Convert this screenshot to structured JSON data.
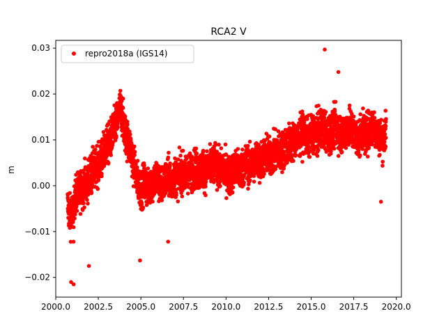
{
  "chart_data": {
    "type": "scatter",
    "title": "RCA2 V",
    "xlabel": "",
    "ylabel": "m",
    "xlim": [
      2000.0,
      2020.3
    ],
    "ylim": [
      -0.0243,
      0.0317
    ],
    "x_ticks": [
      2000.0,
      2002.5,
      2005.0,
      2007.5,
      2010.0,
      2012.5,
      2015.0,
      2017.5,
      2020.0
    ],
    "x_tick_labels": [
      "2000.0",
      "2002.5",
      "2005.0",
      "2007.5",
      "2010.0",
      "2012.5",
      "2015.0",
      "2017.5",
      "2020.0"
    ],
    "y_ticks": [
      -0.02,
      -0.01,
      0.0,
      0.01,
      0.02,
      0.03
    ],
    "y_tick_labels": [
      "−0.02",
      "−0.01",
      "0.00",
      "0.01",
      "0.02",
      "0.03"
    ],
    "grid": false,
    "legend_position": "top-left",
    "series": [
      {
        "name": "repro2018a (IGS14)",
        "color": "#ff0000",
        "marker": "circle",
        "x": [
          2000.7,
          2000.8,
          2000.9,
          2001.0,
          2001.05,
          2001.1,
          2001.2,
          2001.3,
          2001.4,
          2001.5,
          2001.6,
          2001.7,
          2001.8,
          2001.9,
          2002.0,
          2002.1,
          2002.2,
          2002.3,
          2002.4,
          2002.5,
          2002.6,
          2002.7,
          2002.8,
          2002.9,
          2003.0,
          2003.1,
          2003.2,
          2003.3,
          2003.4,
          2003.5,
          2003.6,
          2003.7,
          2003.8,
          2003.9,
          2004.0,
          2004.1,
          2004.2,
          2004.3,
          2004.4,
          2004.5,
          2004.6,
          2004.7,
          2004.8,
          2004.9,
          2005.0,
          2005.1,
          2005.2,
          2005.3,
          2005.4,
          2005.5,
          2005.6,
          2005.7,
          2005.8,
          2005.9,
          2006.0,
          2006.2,
          2006.4,
          2006.6,
          2006.8,
          2007.0,
          2007.2,
          2007.4,
          2007.6,
          2007.8,
          2008.0,
          2008.2,
          2008.4,
          2008.6,
          2008.8,
          2009.0,
          2009.2,
          2009.4,
          2009.6,
          2009.8,
          2010.0,
          2010.2,
          2010.4,
          2010.6,
          2010.8,
          2011.0,
          2011.2,
          2011.4,
          2011.6,
          2011.8,
          2012.0,
          2012.2,
          2012.4,
          2012.6,
          2012.8,
          2013.0,
          2013.2,
          2013.4,
          2013.6,
          2013.8,
          2014.0,
          2014.2,
          2014.4,
          2014.6,
          2014.8,
          2015.0,
          2015.2,
          2015.4,
          2015.6,
          2015.8,
          2016.0,
          2016.2,
          2016.4,
          2016.6,
          2016.8,
          2017.0,
          2017.2,
          2017.4,
          2017.6,
          2017.8,
          2018.0,
          2018.2,
          2018.4,
          2018.6,
          2018.8,
          2019.0,
          2019.2,
          2019.4
        ],
        "y": [
          -0.004,
          -0.006,
          -0.007,
          -0.005,
          -0.008,
          -0.003,
          -0.002,
          -0.001,
          -0.002,
          0.0,
          -0.001,
          0.001,
          0.0,
          0.001,
          0.003,
          0.002,
          0.004,
          0.003,
          0.005,
          0.004,
          0.006,
          0.005,
          0.007,
          0.008,
          0.009,
          0.009,
          0.01,
          0.011,
          0.012,
          0.013,
          0.014,
          0.016,
          0.017,
          0.015,
          0.013,
          0.011,
          0.01,
          0.009,
          0.008,
          0.006,
          0.004,
          0.003,
          0.001,
          0.0,
          -0.001,
          0.0,
          0.001,
          0.0,
          -0.001,
          0.0,
          0.001,
          0.0,
          0.001,
          0.002,
          0.001,
          0.0,
          0.001,
          0.002,
          0.001,
          0.002,
          0.002,
          0.003,
          0.002,
          0.003,
          0.003,
          0.004,
          0.003,
          0.004,
          0.003,
          0.004,
          0.004,
          0.005,
          0.003,
          0.004,
          0.003,
          0.002,
          0.003,
          0.004,
          0.003,
          0.004,
          0.005,
          0.004,
          0.005,
          0.006,
          0.005,
          0.006,
          0.007,
          0.006,
          0.007,
          0.008,
          0.007,
          0.008,
          0.009,
          0.009,
          0.01,
          0.01,
          0.011,
          0.012,
          0.01,
          0.011,
          0.012,
          0.011,
          0.013,
          0.012,
          0.011,
          0.012,
          0.013,
          0.012,
          0.011,
          0.012,
          0.013,
          0.012,
          0.011,
          0.01,
          0.012,
          0.011,
          0.012,
          0.013,
          0.012,
          0.011,
          0.01,
          0.012
        ]
      }
    ],
    "outliers": {
      "x": [
        2000.9,
        2001.05,
        2001.95,
        2004.95,
        2006.6,
        2015.8,
        2016.6,
        2019.1
      ],
      "y": [
        -0.021,
        -0.0215,
        -0.0175,
        -0.0163,
        -0.0122,
        0.0297,
        0.0248,
        -0.0035
      ]
    },
    "noise_scale": 0.0038
  }
}
